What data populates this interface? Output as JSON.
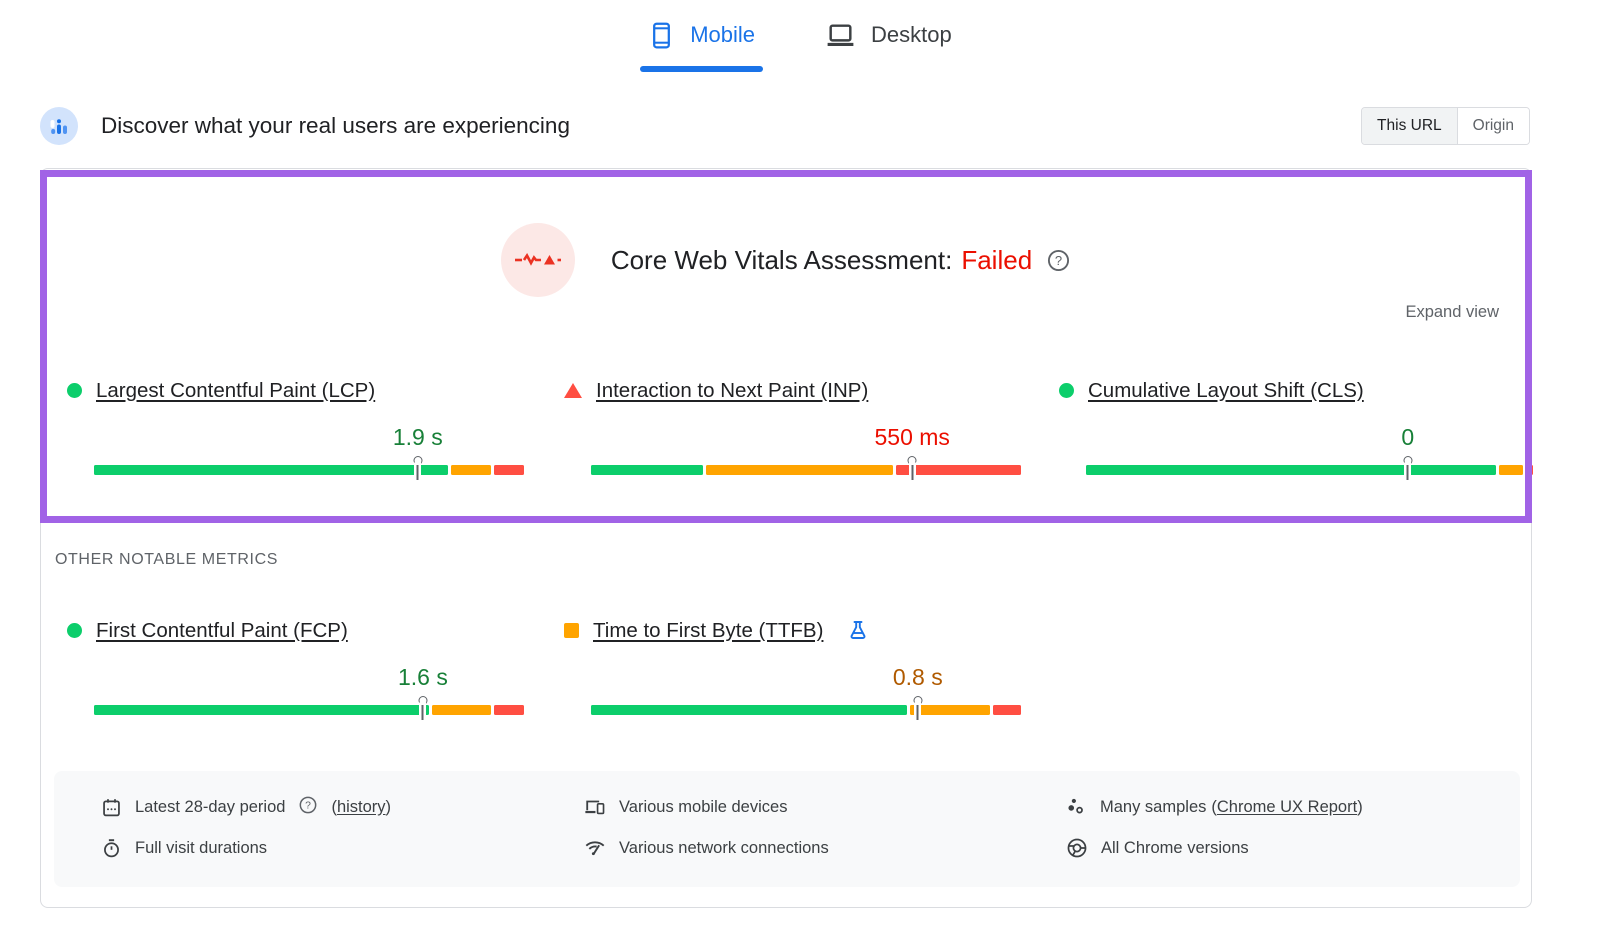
{
  "device_tabs": {
    "mobile": {
      "label": "Mobile",
      "active": true
    },
    "desktop": {
      "label": "Desktop",
      "active": false
    }
  },
  "field_header": {
    "title": "Discover what your real users are experiencing",
    "scope_toggle": {
      "this_url": "This URL",
      "origin": "Origin",
      "selected": "This URL"
    }
  },
  "cwv_assessment": {
    "title": "Core Web Vitals Assessment:",
    "status": "Failed",
    "expand_label": "Expand view"
  },
  "other_metrics_heading": "OTHER NOTABLE METRICS",
  "metrics": {
    "core": [
      {
        "name": "lcp",
        "label": "Largest Contentful Paint (LCP)",
        "status": "good",
        "value": "1.9 s",
        "distribution": {
          "good_pct": 83.5,
          "average_pct": 9.5,
          "poor_pct": 7.0
        },
        "p75_marker_pct": 75.3
      },
      {
        "name": "inp",
        "label": "Interaction to Next Paint (INP)",
        "status": "poor",
        "value": "550 ms",
        "distribution": {
          "good_pct": 26.3,
          "average_pct": 44.2,
          "poor_pct": 29.5
        },
        "p75_marker_pct": 74.7
      },
      {
        "name": "cls",
        "label": "Cumulative Layout Shift (CLS)",
        "status": "good",
        "value": "0",
        "distribution": {
          "good_pct": 93.0,
          "average_pct": 5.5,
          "poor_pct": 1.5
        },
        "p75_marker_pct": 72.0
      }
    ],
    "other": [
      {
        "name": "fcp",
        "label": "First Contentful Paint (FCP)",
        "status": "good",
        "value": "1.6 s",
        "distribution": {
          "good_pct": 79.0,
          "average_pct": 14.0,
          "poor_pct": 7.0
        },
        "p75_marker_pct": 76.5
      },
      {
        "name": "ttfb",
        "label": "Time to First Byte (TTFB)",
        "status": "average",
        "value": "0.8 s",
        "experimental": true,
        "distribution": {
          "good_pct": 74.5,
          "average_pct": 19.0,
          "poor_pct": 6.5
        },
        "p75_marker_pct": 76.0
      }
    ]
  },
  "data_notes": {
    "period_label": "Latest 28-day period",
    "period_link": "history",
    "durations_label": "Full visit durations",
    "devices_label": "Various mobile devices",
    "connections_label": "Various network connections",
    "samples_label": "Many samples",
    "samples_link": "Chrome UX Report",
    "versions_label": "All Chrome versions"
  },
  "punct": {
    "open": "(",
    "close": ")"
  },
  "colors": {
    "good": "#0cce6b",
    "average": "#ffa400",
    "poor": "#ff4e42",
    "good_text": "#188038",
    "average_text": "#b05a00",
    "poor_text": "#eb0f00",
    "accent_blue": "#1a73e8",
    "status_red_text": "#eb0f00",
    "highlight_purple": "#a163e6",
    "footer_bg": "#f8f9fa"
  }
}
